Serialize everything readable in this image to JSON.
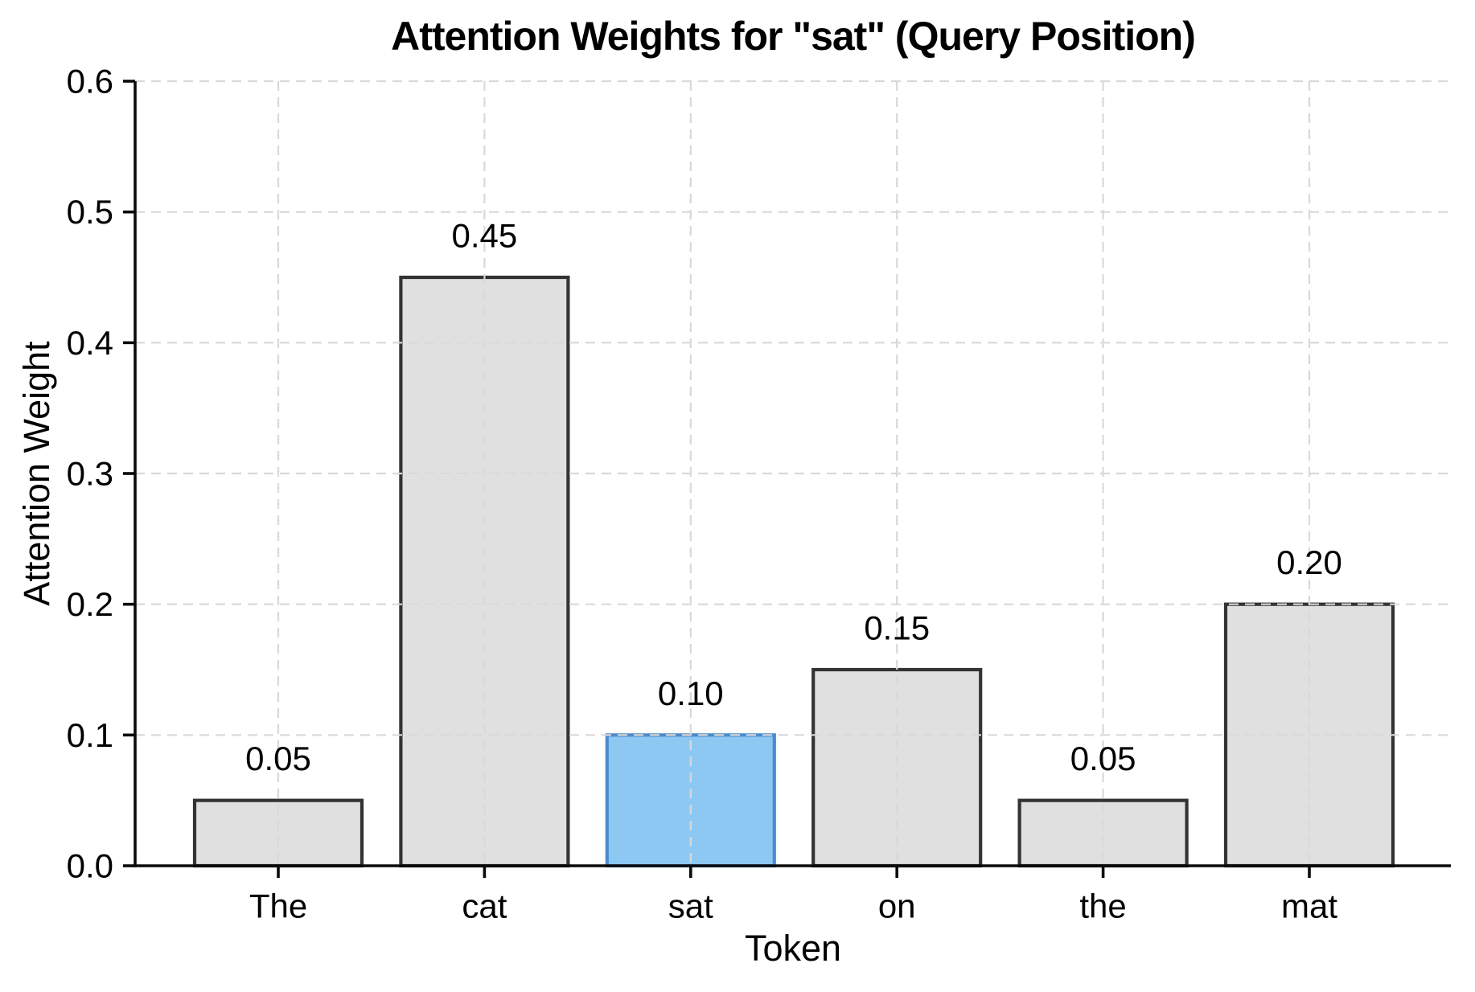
{
  "figure": {
    "background": "#ffffff"
  },
  "chart_data": {
    "type": "bar",
    "title": "Attention Weights for \"sat\" (Query Position)",
    "xlabel": "Token",
    "ylabel": "Attention Weight",
    "categories": [
      "The",
      "cat",
      "sat",
      "on",
      "the",
      "mat"
    ],
    "values": [
      0.05,
      0.45,
      0.1,
      0.15,
      0.05,
      0.2
    ],
    "value_labels": [
      "0.05",
      "0.45",
      "0.10",
      "0.15",
      "0.05",
      "0.20"
    ],
    "highlighted_category": "sat",
    "highlighted_index": 2,
    "ylim": [
      0,
      0.6
    ],
    "yticks": [
      0,
      0.1,
      0.2,
      0.3,
      0.4,
      0.5,
      0.6
    ],
    "ytick_labels": [
      "0.0",
      "0.1",
      "0.2",
      "0.3",
      "0.4",
      "0.5",
      "0.6"
    ],
    "grid": "dashed gridlines on both axes, drawn above bars",
    "legend": null,
    "colors": {
      "bar_fill": "#e0e0e0",
      "bar_edge": "#333333",
      "highlight_fill": "#8dc8f3",
      "highlight_edge": "#4a8ccc",
      "grid_color": "#d9d9d9",
      "spine_color": "#0a0a0a",
      "text_color": "#000000"
    }
  }
}
